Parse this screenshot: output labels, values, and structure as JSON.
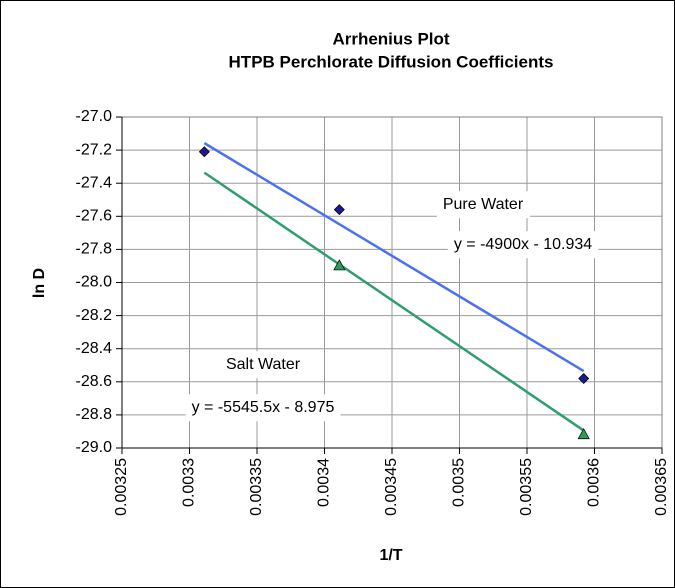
{
  "chart_data": {
    "type": "scatter",
    "title": [
      "Arrhenius Plot",
      "HTPB Perchlorate Diffusion Coefficients"
    ],
    "xlabel": "1/T",
    "ylabel": "ln D",
    "xlim": [
      0.00325,
      0.00365
    ],
    "xticks": [
      0.00325,
      0.0033,
      0.00335,
      0.0034,
      0.00345,
      0.0035,
      0.00355,
      0.0036,
      0.00365
    ],
    "ylim": [
      -29,
      -27
    ],
    "yticks": [
      {
        "value": -27,
        "label": "-27.0"
      },
      {
        "value": -27.2,
        "label": "-27.2"
      },
      {
        "value": -27.4,
        "label": "-27.4"
      },
      {
        "value": -27.6,
        "label": "-27.6"
      },
      {
        "value": -27.8,
        "label": "-27.8"
      },
      {
        "value": -28,
        "label": "-28.0"
      },
      {
        "value": -28.2,
        "label": "-28.2"
      },
      {
        "value": -28.4,
        "label": "-28.4"
      },
      {
        "value": -28.6,
        "label": "-28.6"
      },
      {
        "value": -28.8,
        "label": "-28.8"
      },
      {
        "value": -29,
        "label": "-29.0"
      }
    ],
    "grid": true,
    "series": [
      {
        "name": "Pure Water",
        "marker": "diamond",
        "color": "#1a1a8c",
        "line_color": "#4a72f0",
        "x": [
          0.003311,
          0.003411,
          0.003592
        ],
        "values": [
          -27.21,
          -27.56,
          -28.58
        ],
        "equation": "y = -4900x - 10.934",
        "slope": -4900,
        "intercept": -10.934
      },
      {
        "name": "Salt Water",
        "marker": "triangle",
        "color": "#2f9a5a",
        "line_color": "#2e9e6e",
        "x": [
          0.003411,
          0.003592
        ],
        "values": [
          -27.9,
          -28.92
        ],
        "equation": "y = -5545.5x - 8.975",
        "slope": -5545.5,
        "intercept": -8.975
      }
    ]
  }
}
